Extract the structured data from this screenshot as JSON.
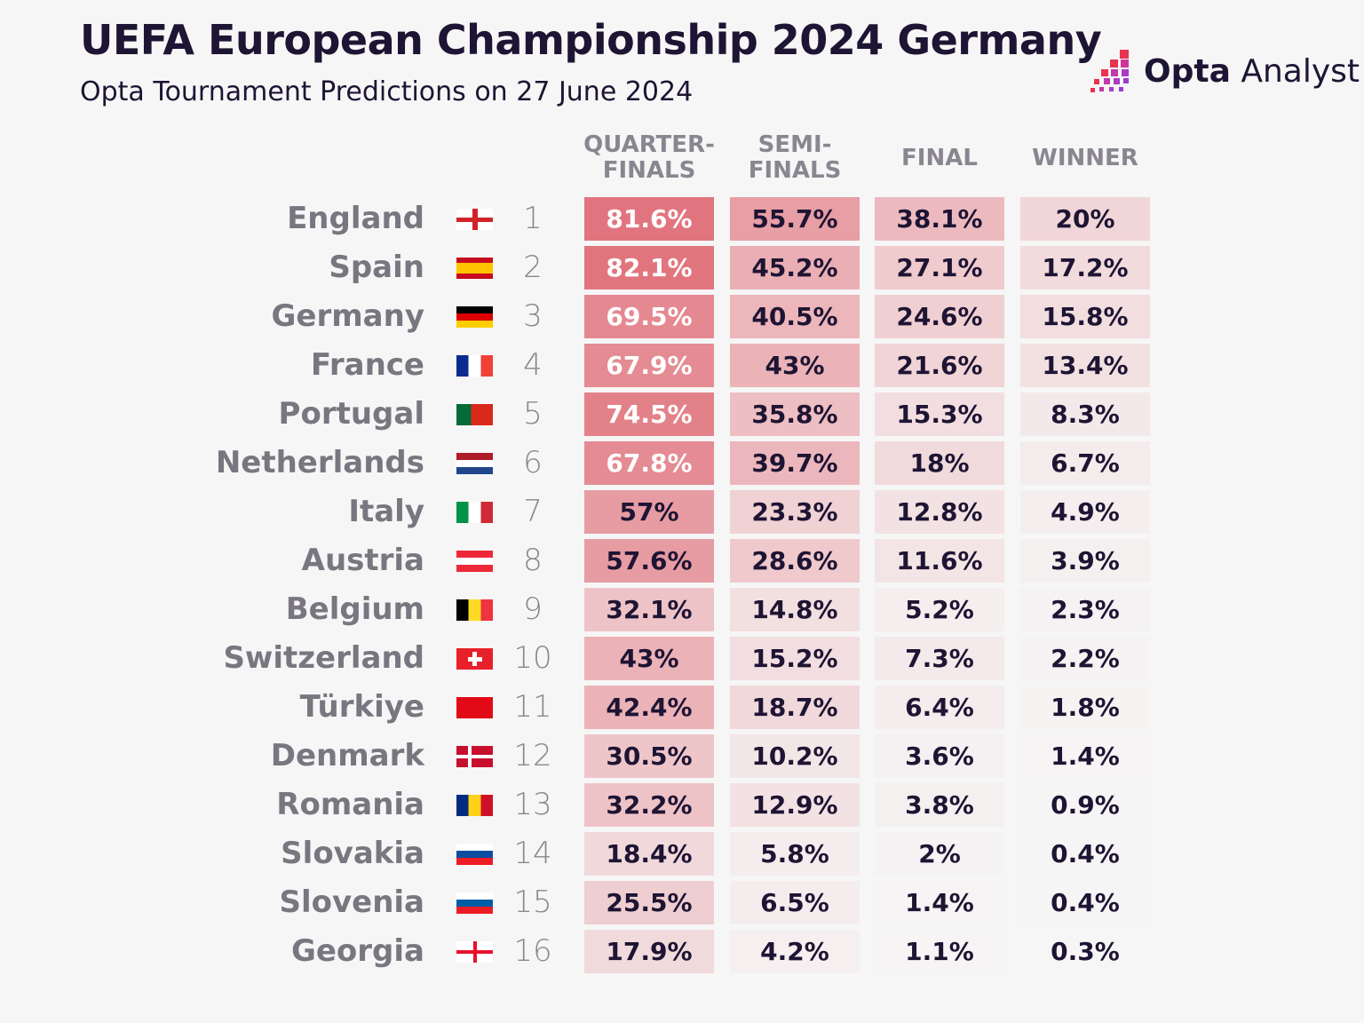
{
  "title": "UEFA European Championship 2024 Germany",
  "subtitle": "Opta Tournament Predictions on 27 June 2024",
  "logo": {
    "bold": "Opta",
    "light": " Analyst"
  },
  "chart_data": {
    "type": "table",
    "columns": [
      "QUARTER-FINALS",
      "SEMI-FINALS",
      "FINAL",
      "WINNER"
    ],
    "column_lines": [
      [
        "QUARTER-",
        "FINALS"
      ],
      [
        "SEMI-",
        "FINALS"
      ],
      [
        "FINAL"
      ],
      [
        "WINNER"
      ]
    ],
    "rows": [
      {
        "team": "England",
        "rank": "1",
        "flag": "england",
        "values": [
          "81.6%",
          "55.7%",
          "38.1%",
          "20%"
        ]
      },
      {
        "team": "Spain",
        "rank": "2",
        "flag": "spain",
        "values": [
          "82.1%",
          "45.2%",
          "27.1%",
          "17.2%"
        ]
      },
      {
        "team": "Germany",
        "rank": "3",
        "flag": "germany",
        "values": [
          "69.5%",
          "40.5%",
          "24.6%",
          "15.8%"
        ]
      },
      {
        "team": "France",
        "rank": "4",
        "flag": "france",
        "values": [
          "67.9%",
          "43%",
          "21.6%",
          "13.4%"
        ]
      },
      {
        "team": "Portugal",
        "rank": "5",
        "flag": "portugal",
        "values": [
          "74.5%",
          "35.8%",
          "15.3%",
          "8.3%"
        ]
      },
      {
        "team": "Netherlands",
        "rank": "6",
        "flag": "netherlands",
        "values": [
          "67.8%",
          "39.7%",
          "18%",
          "6.7%"
        ]
      },
      {
        "team": "Italy",
        "rank": "7",
        "flag": "italy",
        "values": [
          "57%",
          "23.3%",
          "12.8%",
          "4.9%"
        ]
      },
      {
        "team": "Austria",
        "rank": "8",
        "flag": "austria",
        "values": [
          "57.6%",
          "28.6%",
          "11.6%",
          "3.9%"
        ]
      },
      {
        "team": "Belgium",
        "rank": "9",
        "flag": "belgium",
        "values": [
          "32.1%",
          "14.8%",
          "5.2%",
          "2.3%"
        ]
      },
      {
        "team": "Switzerland",
        "rank": "10",
        "flag": "switzerland",
        "values": [
          "43%",
          "15.2%",
          "7.3%",
          "2.2%"
        ]
      },
      {
        "team": "Türkiye",
        "rank": "11",
        "flag": "turkiye",
        "values": [
          "42.4%",
          "18.7%",
          "6.4%",
          "1.8%"
        ]
      },
      {
        "team": "Denmark",
        "rank": "12",
        "flag": "denmark",
        "values": [
          "30.5%",
          "10.2%",
          "3.6%",
          "1.4%"
        ]
      },
      {
        "team": "Romania",
        "rank": "13",
        "flag": "romania",
        "values": [
          "32.2%",
          "12.9%",
          "3.8%",
          "0.9%"
        ]
      },
      {
        "team": "Slovakia",
        "rank": "14",
        "flag": "slovakia",
        "values": [
          "18.4%",
          "5.8%",
          "2%",
          "0.4%"
        ]
      },
      {
        "team": "Slovenia",
        "rank": "15",
        "flag": "slovenia",
        "values": [
          "25.5%",
          "6.5%",
          "1.4%",
          "0.4%"
        ]
      },
      {
        "team": "Georgia",
        "rank": "16",
        "flag": "georgia",
        "values": [
          "17.9%",
          "4.2%",
          "1.1%",
          "0.3%"
        ]
      }
    ],
    "colors": {
      "high": "#e0707a",
      "low": "#f6f6f6",
      "text_dark": "#1e1433",
      "text_light": "#ffffff"
    }
  }
}
